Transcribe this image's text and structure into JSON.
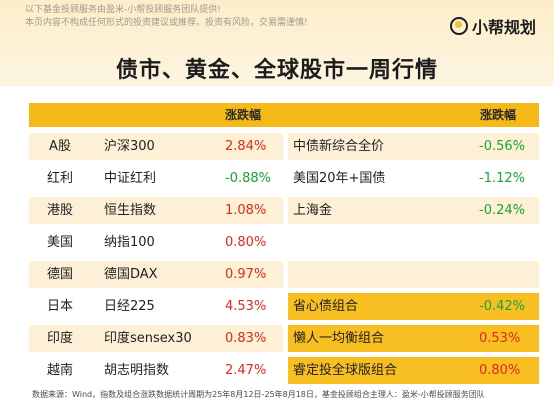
{
  "disclaimer": {
    "line1": "以下基金投顾服务由盈米-小帮投顾服务团队提供!",
    "line2": "本页内容不构成任何形式的投资建议或推荐。投资有风险，交易需谨慎!"
  },
  "brand": {
    "name": "小帮规划"
  },
  "title": "债市、黄金、全球股市一周行情",
  "table_left": {
    "header": "涨跌幅",
    "rows": [
      {
        "region": "A股",
        "index": "沪深300",
        "change": "2.84%",
        "dir": "up"
      },
      {
        "region": "红利",
        "index": "中证红利",
        "change": "-0.88%",
        "dir": "down"
      },
      {
        "region": "港股",
        "index": "恒生指数",
        "change": "1.08%",
        "dir": "up"
      },
      {
        "region": "美国",
        "index": "纳指100",
        "change": "0.80%",
        "dir": "up"
      },
      {
        "region": "德国",
        "index": "德国DAX",
        "change": "0.97%",
        "dir": "up"
      },
      {
        "region": "日本",
        "index": "日经225",
        "change": "4.53%",
        "dir": "up"
      },
      {
        "region": "印度",
        "index": "印度sensex30",
        "change": "0.83%",
        "dir": "up"
      },
      {
        "region": "越南",
        "index": "胡志明指数",
        "change": "2.47%",
        "dir": "up"
      }
    ]
  },
  "table_right": {
    "header": "涨跌幅",
    "rows": [
      {
        "name": "中债新综合全价",
        "change": "-0.56%",
        "dir": "down"
      },
      {
        "name": "美国20年+国债",
        "change": "-1.12%",
        "dir": "down"
      },
      {
        "name": "上海金",
        "change": "-0.24%",
        "dir": "down"
      },
      {
        "name": "",
        "change": "",
        "dir": ""
      },
      {
        "name": "",
        "change": "",
        "dir": ""
      },
      {
        "name": "省心债组合",
        "change": "-0.42%",
        "dir": "down"
      },
      {
        "name": "懒人一均衡组合",
        "change": "0.53%",
        "dir": "up"
      },
      {
        "name": "睿定投全球版组合",
        "change": "0.80%",
        "dir": "up"
      }
    ]
  },
  "footer": "数据来源：Wind，指数及组合涨跌数据统计周期为25年8月12日-25年8月18日，基金投顾组合主理人：盈米-小帮投顾服务团队",
  "colors": {
    "header_bg": "#f5b919",
    "row_tint": "#fdf0d6",
    "highlight_bg": "#f8bf22",
    "up": "#e0291d",
    "down": "#1aa336"
  }
}
